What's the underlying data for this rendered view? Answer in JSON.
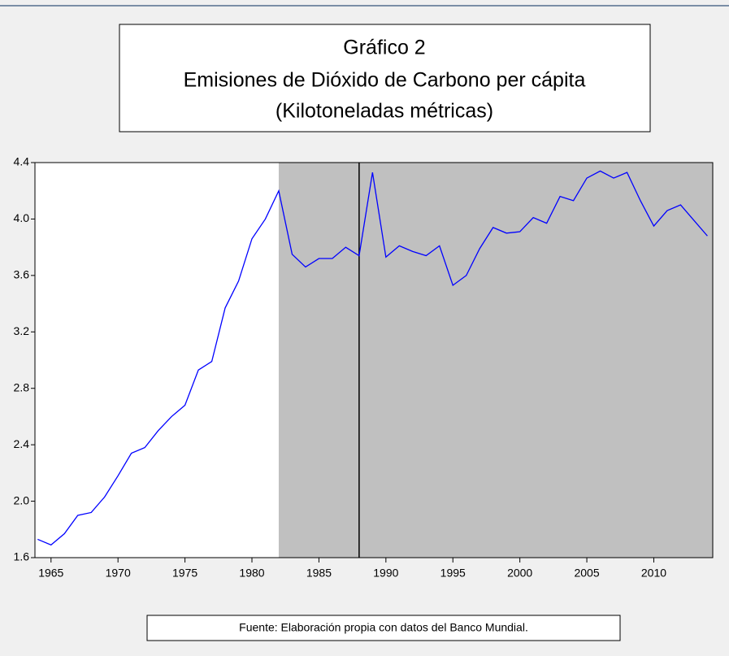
{
  "chart_data": {
    "type": "line",
    "title": [
      "Gráfico 2",
      "Emisiones de Dióxido de Carbono per cápita",
      "(Kilotoneladas métricas)"
    ],
    "footnote": "Fuente: Elaboración propia con datos del Banco Mundial.",
    "x": [
      1964,
      1965,
      1966,
      1967,
      1968,
      1969,
      1970,
      1971,
      1972,
      1973,
      1974,
      1975,
      1976,
      1977,
      1978,
      1979,
      1980,
      1981,
      1982,
      1983,
      1984,
      1985,
      1986,
      1987,
      1988,
      1989,
      1990,
      1991,
      1992,
      1993,
      1994,
      1995,
      1996,
      1997,
      1998,
      1999,
      2000,
      2001,
      2002,
      2003,
      2004,
      2005,
      2006,
      2007,
      2008,
      2009,
      2010,
      2011,
      2012,
      2013,
      2014
    ],
    "series": [
      {
        "color": "#0000ff",
        "values": [
          1.73,
          1.69,
          1.77,
          1.9,
          1.92,
          2.03,
          2.18,
          2.34,
          2.38,
          2.5,
          2.6,
          2.68,
          2.93,
          2.99,
          3.37,
          3.56,
          3.86,
          4.0,
          4.2,
          3.75,
          3.66,
          3.72,
          3.72,
          3.8,
          3.74,
          4.33,
          3.73,
          3.81,
          3.77,
          3.74,
          3.81,
          3.53,
          3.6,
          3.79,
          3.94,
          3.9,
          3.91,
          4.01,
          3.97,
          4.16,
          4.13,
          4.29,
          4.34,
          4.29,
          4.33,
          4.13,
          3.95,
          4.06,
          4.1,
          3.99,
          3.88
        ]
      }
    ],
    "xlim": [
      1963.8,
      2014.4
    ],
    "xticks": [
      1965,
      1970,
      1975,
      1980,
      1985,
      1990,
      1995,
      2000,
      2005,
      2010
    ],
    "ylim": [
      1.6,
      4.4
    ],
    "yticks": [
      1.6,
      {
        "value": 2,
        "label": "2.0"
      },
      2.4,
      2.8,
      3.2,
      3.6,
      {
        "value": 4,
        "label": "4.0"
      },
      4.4
    ],
    "shaded_region": {
      "from": 1982,
      "to": 2014.4,
      "color": "#c0c0c0"
    },
    "vline": 1988
  }
}
